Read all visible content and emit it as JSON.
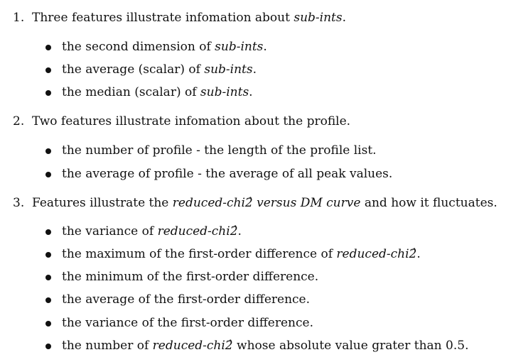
{
  "items": [
    {
      "number": "1.",
      "text": [
        {
          "t": "Three features illustrate infomation about "
        },
        {
          "t": "sub-ints",
          "i": true
        },
        {
          "t": "."
        }
      ],
      "bullets": [
        [
          {
            "t": "the second dimension of "
          },
          {
            "t": "sub-ints",
            "i": true
          },
          {
            "t": "."
          }
        ],
        [
          {
            "t": "the average (scalar) of "
          },
          {
            "t": "sub-ints",
            "i": true
          },
          {
            "t": "."
          }
        ],
        [
          {
            "t": "the median (scalar) of "
          },
          {
            "t": "sub-ints",
            "i": true
          },
          {
            "t": "."
          }
        ]
      ]
    },
    {
      "number": "2.",
      "text": [
        {
          "t": "Two features illustrate infomation about the profile."
        }
      ],
      "bullets": [
        [
          {
            "t": "the number of profile - the length of the profile list."
          }
        ],
        [
          {
            "t": "the average of profile - the average of all peak values."
          }
        ]
      ]
    },
    {
      "number": "3.",
      "text": [
        {
          "t": "Features illustrate the "
        },
        {
          "t": "reduced-chi2̂ versus DM curve",
          "i": true
        },
        {
          "t": " and how it fluctuates."
        }
      ],
      "bullets": [
        [
          {
            "t": "the variance of "
          },
          {
            "t": "reduced-chi2̂",
            "i": true
          },
          {
            "t": "."
          }
        ],
        [
          {
            "t": "the maximum of the first-order difference of "
          },
          {
            "t": "reduced-chi2̂",
            "i": true
          },
          {
            "t": "."
          }
        ],
        [
          {
            "t": "the minimum of the first-order difference."
          }
        ],
        [
          {
            "t": "the average of the first-order difference."
          }
        ],
        [
          {
            "t": "the variance of the first-order difference."
          }
        ],
        [
          {
            "t": "the number of "
          },
          {
            "t": "reduced-chi2̂",
            "i": true
          },
          {
            "t": " whose absolute value grater than 0.5."
          }
        ]
      ]
    }
  ]
}
